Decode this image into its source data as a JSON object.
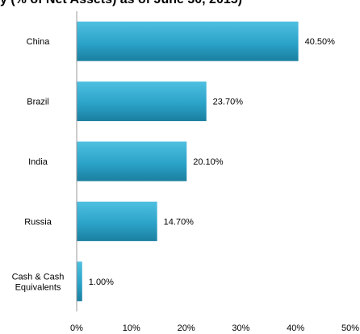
{
  "title_fragment": "y (% of Net Assets) as of June 30, 2015)",
  "chart_data": {
    "type": "bar",
    "orientation": "horizontal",
    "categories": [
      "China",
      "Brazil",
      "India",
      "Russia",
      "Cash & Cash Equivalents"
    ],
    "category_lines": [
      [
        "China"
      ],
      [
        "Brazil"
      ],
      [
        "India"
      ],
      [
        "Russia"
      ],
      [
        "Cash & Cash",
        "Equivalents"
      ]
    ],
    "values": [
      40.5,
      23.7,
      20.1,
      14.7,
      1.0
    ],
    "data_labels": [
      "40.50%",
      "23.70%",
      "20.10%",
      "14.70%",
      "1.00%"
    ],
    "xlim": [
      0,
      50
    ],
    "x_ticks": [
      0,
      10,
      20,
      30,
      40,
      50
    ],
    "x_tick_labels": [
      "0%",
      "10%",
      "20%",
      "30%",
      "40%",
      "50%"
    ],
    "grid": false,
    "legend": "none",
    "colors": {
      "bar_top": "#4fc0e0",
      "bar_mid": "#2ba3c9",
      "bar_bottom": "#1b7f9f",
      "axis": "#9a9a9a"
    }
  }
}
